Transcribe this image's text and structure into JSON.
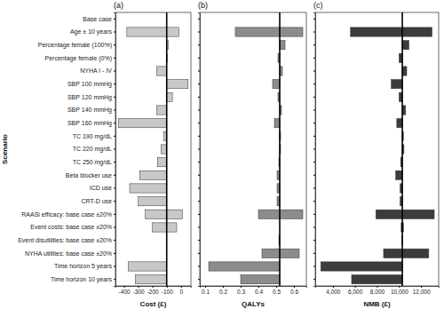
{
  "chart_data": [
    {
      "type": "bar",
      "orientation": "horizontal",
      "title": "(a)",
      "x_label": "Cost (£)",
      "y_label": "Scenario",
      "categories": [
        "Base case",
        "Age ± 10 years",
        "Percentage female (100%)",
        "Percentage female (0%)",
        "NYHA I - IV",
        "SBP 100 mmHg",
        "SBP 120 mmHg",
        "SBP 140 mmHg",
        "SBP 160 mmHg",
        "TC 190 mg/dL",
        "TC 220 mg/dL",
        "TC 250 mg/dL",
        "Beta blocker use",
        "ICD use",
        "CRT-D use",
        "RAASi efficacy: base case ±20%",
        "Event costs: base case ±20%",
        "Event disutilities: base case ±20%",
        "NYHA utilities: base case ±20%",
        "Time horizon 5 years",
        "Time horizon 10 years"
      ],
      "values": [
        null,
        [
          -380,
          -15
        ],
        [
          -100,
          -90
        ],
        [
          -100,
          -95
        ],
        [
          -170,
          -100
        ],
        [
          -100,
          50
        ],
        [
          -100,
          -60
        ],
        [
          -170,
          -100
        ],
        [
          -440,
          -100
        ],
        [
          -120,
          -100
        ],
        [
          -140,
          -100
        ],
        [
          -165,
          -100
        ],
        [
          -290,
          -100
        ],
        [
          -360,
          -100
        ],
        [
          -300,
          -100
        ],
        [
          -250,
          10
        ],
        [
          -200,
          -30
        ],
        null,
        null,
        [
          -370,
          -100
        ],
        [
          -320,
          -100
        ]
      ],
      "base_value": -100,
      "color": "#c8c8c8",
      "grid": false,
      "tick_labels": true,
      "xlim": [
        -460,
        70
      ],
      "xticks": [
        -400,
        -300,
        -200,
        -100,
        0
      ]
    },
    {
      "type": "bar",
      "orientation": "horizontal",
      "title": "(b)",
      "x_label": "QALYs",
      "values": [
        null,
        [
          0.27,
          0.65
        ],
        [
          0.52,
          0.55
        ],
        [
          0.51,
          0.52
        ],
        [
          0.52,
          0.535
        ],
        [
          0.48,
          0.52
        ],
        [
          0.51,
          0.52
        ],
        [
          0.52,
          0.53
        ],
        [
          0.49,
          0.52
        ],
        [
          0.52,
          0.525
        ],
        [
          0.52,
          0.525
        ],
        [
          0.515,
          0.52
        ],
        [
          0.505,
          0.52
        ],
        [
          0.505,
          0.52
        ],
        [
          0.505,
          0.52
        ],
        [
          0.4,
          0.65
        ],
        null,
        [
          0.515,
          0.52
        ],
        [
          0.42,
          0.63
        ],
        [
          0.12,
          0.52
        ],
        [
          0.3,
          0.52
        ]
      ],
      "base_value": 0.52,
      "color": "#8c8c8c",
      "grid": false,
      "tick_labels": "x",
      "xlim": [
        0.07,
        0.67
      ],
      "xticks": [
        0.1,
        0.2,
        0.3,
        0.4,
        0.5,
        0.6
      ]
    },
    {
      "type": "bar",
      "orientation": "horizontal",
      "title": "(c)",
      "x_label": "NMB (£)",
      "values": [
        null,
        [
          5600,
          13000
        ],
        [
          10300,
          10900
        ],
        [
          10000,
          10300
        ],
        [
          10300,
          10700
        ],
        [
          9300,
          10300
        ],
        [
          10000,
          10300
        ],
        [
          10300,
          10600
        ],
        [
          9800,
          10300
        ],
        [
          10300,
          10400
        ],
        [
          10300,
          10450
        ],
        [
          10150,
          10300
        ],
        [
          9700,
          10300
        ],
        [
          10100,
          10300
        ],
        [
          10100,
          10300
        ],
        [
          7900,
          13200
        ],
        [
          10200,
          10400
        ],
        [
          10250,
          10300
        ],
        [
          8600,
          12700
        ],
        [
          2900,
          10300
        ],
        [
          5700,
          10300
        ]
      ],
      "base_value": 10300,
      "color": "#3c3c3c",
      "grid": false,
      "tick_labels": "x",
      "xlim": [
        2400,
        13600
      ],
      "xticks": [
        {
          "value": 4000,
          "label": "4,000"
        },
        {
          "value": 6000,
          "label": "6,000"
        },
        {
          "value": 8000,
          "label": "8,000"
        },
        {
          "value": 10000,
          "label": "10,000"
        },
        {
          "value": 12000,
          "label": "12,000"
        }
      ]
    }
  ]
}
